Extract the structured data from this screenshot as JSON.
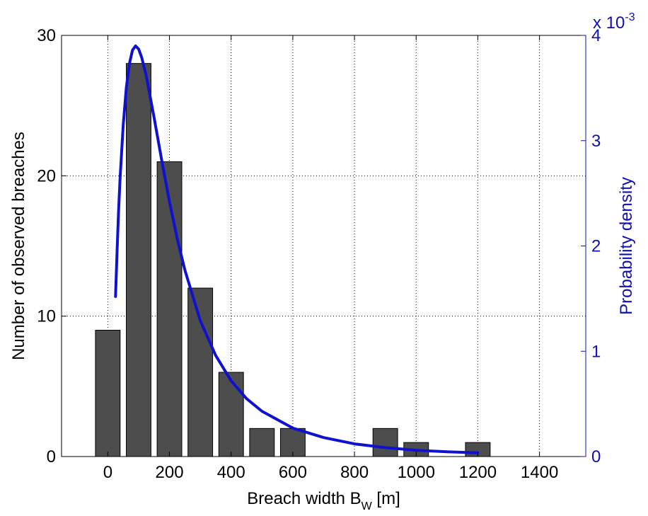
{
  "chart_data": {
    "type": "bar",
    "xlabel": "Breach width B",
    "xlabel_subscript": "W",
    "xlabel_unit": " [m]",
    "ylabel_left": "Number of observed breaches",
    "ylabel_right": "Probability density",
    "right_axis_multiplier": "x 10",
    "right_axis_exponent": "-3",
    "xlim": [
      -150,
      1550
    ],
    "ylim_left": [
      0,
      30
    ],
    "ylim_right": [
      0,
      4
    ],
    "grid": true,
    "x_ticks": [
      "0",
      "200",
      "400",
      "600",
      "800",
      "1000",
      "1200",
      "1400"
    ],
    "y_ticks_left": [
      "0",
      "10",
      "20",
      "30"
    ],
    "y_ticks_right": [
      "0",
      "1",
      "2",
      "3",
      "4"
    ],
    "bar_width": 80,
    "bar_color": "#4d4d4d",
    "curve_color": "#1010d0",
    "right_axis_color": "#1010b0",
    "series": [
      {
        "type": "bar",
        "x": [
          0,
          100,
          200,
          300,
          400,
          500,
          600,
          900,
          1000,
          1200
        ],
        "values": [
          9,
          28,
          21,
          12,
          6,
          2,
          2,
          2,
          1,
          1
        ]
      },
      {
        "type": "line",
        "axis": "right",
        "x": [
          25,
          30,
          35,
          40,
          50,
          60,
          70,
          80,
          90,
          100,
          110,
          125,
          150,
          175,
          200,
          225,
          250,
          300,
          350,
          400,
          450,
          500,
          600,
          700,
          800,
          900,
          1000,
          1100,
          1200
        ],
        "values": [
          1.52,
          1.95,
          2.33,
          2.65,
          3.15,
          3.5,
          3.73,
          3.86,
          3.9,
          3.87,
          3.79,
          3.61,
          3.22,
          2.81,
          2.42,
          2.07,
          1.77,
          1.29,
          0.96,
          0.72,
          0.55,
          0.43,
          0.27,
          0.18,
          0.12,
          0.085,
          0.06,
          0.045,
          0.035
        ]
      }
    ]
  }
}
